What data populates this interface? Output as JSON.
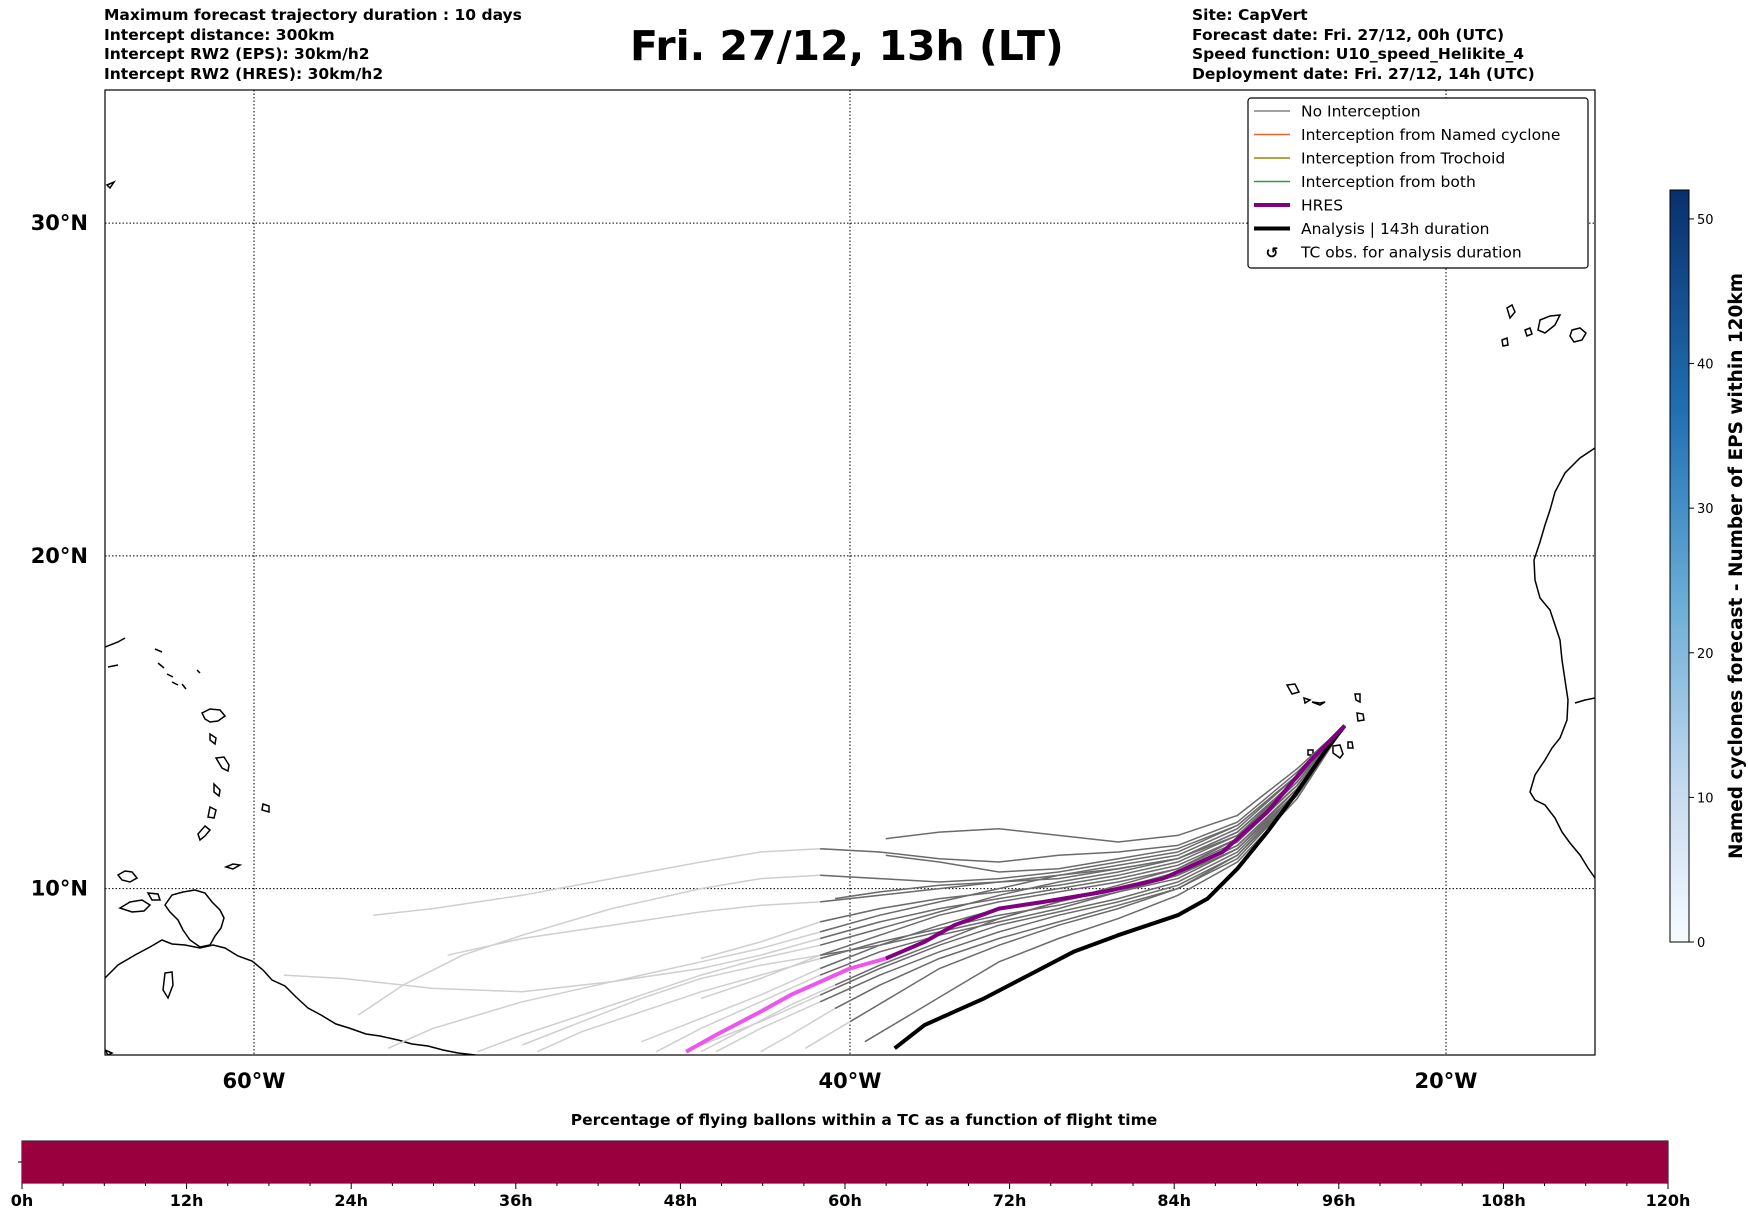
{
  "header_left": [
    "Maximum forecast trajectory duration : 10 days",
    "Intercept distance: 300km",
    "Intercept RW2 (EPS):  30km/h2",
    "Intercept RW2 (HRES): 30km/h2"
  ],
  "title": "Fri. 27/12, 13h (LT)",
  "header_right": [
    "Site: CapVert",
    "Forecast date: Fri. 27/12, 00h (UTC)",
    "Speed function: U10_speed_Helikite_4",
    "Deployment date: Fri. 27/12, 14h (UTC)"
  ],
  "colors": {
    "no_interception": "#808080",
    "named_cyclone": "#e8622c",
    "trochoid": "#8b8b00",
    "both": "#2e9c3a",
    "hres": "#800080",
    "hres_light": "#ee55ee",
    "analysis": "#000000",
    "bar_fill": "#99003d"
  },
  "chart_data": {
    "type": "line",
    "title": "Fri. 27/12, 13h (LT)",
    "xlabel": "",
    "ylabel": "",
    "xlim": [
      -65,
      -15
    ],
    "ylim": [
      5,
      34
    ],
    "x_ticks": [
      -60,
      -40,
      -20
    ],
    "x_tick_labels": [
      "60°W",
      "40°W",
      "20°W"
    ],
    "y_ticks": [
      10,
      20,
      30
    ],
    "y_tick_labels": [
      "10°N",
      "20°N",
      "30°N"
    ],
    "grid": true,
    "legend_position": "top-right",
    "legend": [
      {
        "label": "No Interception",
        "color": "#808080",
        "style": "thin"
      },
      {
        "label": "Interception from Named cyclone",
        "color": "#e8622c",
        "style": "thin"
      },
      {
        "label": "Interception from Trochoid",
        "color": "#8b8b00",
        "style": "thin"
      },
      {
        "label": "Interception from both",
        "color": "#2e9c3a",
        "style": "thin"
      },
      {
        "label": "HRES",
        "color": "#800080",
        "style": "thick"
      },
      {
        "label": "Analysis | 143h duration",
        "color": "#000000",
        "style": "thick"
      },
      {
        "label": "TC obs. for analysis duration",
        "color": "#000000",
        "style": "marker"
      }
    ],
    "origin": {
      "lon": -23.4,
      "lat": 14.9
    },
    "series": [
      {
        "name": "HRES",
        "points": [
          [
            -23.4,
            14.9
          ],
          [
            -24.6,
            13.8
          ],
          [
            -26,
            12.3
          ],
          [
            -27.5,
            11.1
          ],
          [
            -29.5,
            10.3
          ],
          [
            -31.5,
            9.9
          ],
          [
            -33.5,
            9.6
          ],
          [
            -35,
            9.4
          ],
          [
            -36.5,
            8.9
          ],
          [
            -37.5,
            8.4
          ],
          [
            -38.8,
            7.9
          ],
          [
            -40,
            7.6
          ],
          [
            -41,
            7.2
          ],
          [
            -42,
            6.8
          ],
          [
            -43,
            6.3
          ],
          [
            -44.5,
            5.6
          ],
          [
            -45.5,
            5.1
          ]
        ]
      },
      {
        "name": "Analysis | 143h duration",
        "points": [
          [
            -23.4,
            14.9
          ],
          [
            -24,
            14.2
          ],
          [
            -25,
            12.9
          ],
          [
            -26,
            11.7
          ],
          [
            -27,
            10.6
          ],
          [
            -28,
            9.7
          ],
          [
            -29,
            9.2
          ],
          [
            -31,
            8.6
          ],
          [
            -32.5,
            8.1
          ],
          [
            -34,
            7.4
          ],
          [
            -35.5,
            6.7
          ],
          [
            -36.5,
            6.3
          ],
          [
            -37.5,
            5.9
          ],
          [
            -38.5,
            5.2
          ]
        ]
      }
    ],
    "ensemble_members": [
      [
        [
          -23.4,
          14.9
        ],
        [
          -25,
          13.4
        ],
        [
          -27,
          11.9
        ],
        [
          -29,
          11.2
        ],
        [
          -31,
          10.9
        ],
        [
          -33,
          10.6
        ],
        [
          -35,
          10.5
        ],
        [
          -37,
          10.8
        ],
        [
          -38.8,
          11.0
        ]
      ],
      [
        [
          -23.4,
          14.9
        ],
        [
          -25,
          13.5
        ],
        [
          -27,
          12.0
        ],
        [
          -29,
          11.3
        ],
        [
          -31,
          11.1
        ],
        [
          -33,
          11.0
        ],
        [
          -35,
          10.8
        ],
        [
          -37,
          10.9
        ],
        [
          -39,
          11.1
        ],
        [
          -41,
          11.2
        ],
        [
          -43,
          11.1
        ],
        [
          -45,
          10.8
        ],
        [
          -48,
          10.3
        ],
        [
          -51,
          9.8
        ],
        [
          -54,
          9.4
        ],
        [
          -56,
          9.2
        ]
      ],
      [
        [
          -23.4,
          14.9
        ],
        [
          -25,
          13.3
        ],
        [
          -27,
          11.7
        ],
        [
          -29,
          10.9
        ],
        [
          -31,
          10.6
        ],
        [
          -33,
          10.3
        ],
        [
          -35,
          10.2
        ],
        [
          -37,
          10.1
        ],
        [
          -39,
          9.9
        ],
        [
          -40.5,
          9.7
        ]
      ],
      [
        [
          -23.4,
          14.9
        ],
        [
          -25,
          13.2
        ],
        [
          -27,
          11.6
        ],
        [
          -29,
          10.8
        ],
        [
          -31,
          10.4
        ],
        [
          -33,
          10.1
        ],
        [
          -35,
          9.9
        ],
        [
          -37,
          9.7
        ],
        [
          -39,
          9.4
        ],
        [
          -41,
          9.0
        ],
        [
          -43,
          8.4
        ],
        [
          -45,
          7.9
        ]
      ],
      [
        [
          -23.4,
          14.9
        ],
        [
          -25,
          13.1
        ],
        [
          -27,
          11.4
        ],
        [
          -29,
          10.6
        ],
        [
          -31,
          10.2
        ],
        [
          -33,
          9.9
        ],
        [
          -35,
          9.6
        ],
        [
          -37,
          9.2
        ],
        [
          -39,
          8.6
        ],
        [
          -41,
          8.0
        ],
        [
          -43,
          7.3
        ],
        [
          -45,
          6.7
        ]
      ],
      [
        [
          -23.4,
          14.9
        ],
        [
          -25,
          13.0
        ],
        [
          -27,
          11.3
        ],
        [
          -29,
          10.4
        ],
        [
          -31,
          10.0
        ],
        [
          -33,
          9.7
        ],
        [
          -35,
          9.4
        ],
        [
          -37,
          8.9
        ],
        [
          -39,
          8.3
        ],
        [
          -41,
          7.6
        ],
        [
          -43,
          6.8
        ],
        [
          -45,
          6.1
        ],
        [
          -47,
          5.4
        ]
      ],
      [
        [
          -23.4,
          14.9
        ],
        [
          -25,
          12.9
        ],
        [
          -27,
          11.1
        ],
        [
          -29,
          10.2
        ],
        [
          -31,
          9.7
        ],
        [
          -33,
          9.3
        ],
        [
          -35,
          8.9
        ],
        [
          -37,
          8.3
        ],
        [
          -39,
          7.6
        ],
        [
          -41,
          6.8
        ],
        [
          -43,
          6.0
        ],
        [
          -45,
          5.3
        ]
      ],
      [
        [
          -23.4,
          14.9
        ],
        [
          -25,
          12.8
        ],
        [
          -27,
          10.9
        ],
        [
          -29,
          10.0
        ],
        [
          -31,
          9.4
        ],
        [
          -33,
          8.9
        ],
        [
          -35,
          8.3
        ],
        [
          -37,
          7.6
        ],
        [
          -38.5,
          6.8
        ],
        [
          -40,
          6.0
        ],
        [
          -41.5,
          5.2
        ]
      ],
      [
        [
          -23.4,
          14.9
        ],
        [
          -25,
          12.7
        ],
        [
          -27,
          10.8
        ],
        [
          -29,
          9.8
        ],
        [
          -31,
          9.1
        ],
        [
          -33,
          8.5
        ],
        [
          -35,
          7.8
        ],
        [
          -36.5,
          7.0
        ],
        [
          -38,
          6.2
        ],
        [
          -39.5,
          5.4
        ]
      ],
      [
        [
          -23.4,
          14.9
        ],
        [
          -25,
          13.6
        ],
        [
          -27,
          12.2
        ],
        [
          -29,
          11.6
        ],
        [
          -31,
          11.4
        ],
        [
          -33,
          11.6
        ],
        [
          -35,
          11.8
        ],
        [
          -37,
          11.7
        ],
        [
          -38.8,
          11.5
        ]
      ],
      [
        [
          -23.4,
          14.9
        ],
        [
          -25,
          13.4
        ],
        [
          -27,
          11.8
        ],
        [
          -29,
          11.0
        ],
        [
          -31,
          10.7
        ],
        [
          -33,
          10.4
        ],
        [
          -35,
          10.0
        ],
        [
          -37,
          9.6
        ],
        [
          -39,
          9.2
        ],
        [
          -41,
          8.7
        ],
        [
          -43,
          8.2
        ],
        [
          -45,
          7.8
        ],
        [
          -48,
          7.2
        ],
        [
          -51,
          6.6
        ],
        [
          -54,
          5.8
        ],
        [
          -55.5,
          5.2
        ]
      ],
      [
        [
          -23.4,
          14.9
        ],
        [
          -25,
          13.2
        ],
        [
          -27,
          11.5
        ],
        [
          -29,
          10.7
        ],
        [
          -31,
          10.3
        ],
        [
          -33,
          10.0
        ],
        [
          -35,
          9.7
        ],
        [
          -37,
          9.4
        ],
        [
          -39,
          9.0
        ],
        [
          -41,
          8.5
        ],
        [
          -43,
          8.0
        ],
        [
          -45,
          7.6
        ],
        [
          -48,
          7.2
        ],
        [
          -51,
          6.9
        ],
        [
          -54,
          7.0
        ],
        [
          -57,
          7.3
        ],
        [
          -59,
          7.4
        ]
      ],
      [
        [
          -23.4,
          14.9
        ],
        [
          -25,
          13.3
        ],
        [
          -27,
          11.6
        ],
        [
          -29,
          10.9
        ],
        [
          -31,
          10.5
        ],
        [
          -33,
          10.2
        ],
        [
          -35,
          9.8
        ],
        [
          -37,
          9.3
        ],
        [
          -39,
          8.8
        ],
        [
          -41,
          8.3
        ],
        [
          -43,
          7.9
        ],
        [
          -45,
          7.4
        ],
        [
          -47,
          6.8
        ],
        [
          -49,
          6.2
        ],
        [
          -51,
          5.6
        ],
        [
          -52.5,
          5.1
        ]
      ],
      [
        [
          -23.4,
          14.9
        ],
        [
          -25,
          13.0
        ],
        [
          -27,
          11.2
        ],
        [
          -29,
          10.3
        ],
        [
          -31,
          9.9
        ],
        [
          -33,
          9.5
        ],
        [
          -35,
          9.2
        ],
        [
          -37,
          8.8
        ],
        [
          -39,
          8.4
        ],
        [
          -41,
          7.9
        ],
        [
          -43,
          7.4
        ],
        [
          -45,
          6.9
        ],
        [
          -47,
          6.3
        ],
        [
          -49,
          5.7
        ],
        [
          -50.5,
          5.1
        ]
      ],
      [
        [
          -23.4,
          14.9
        ],
        [
          -25,
          12.9
        ],
        [
          -27,
          11.0
        ],
        [
          -29,
          10.1
        ],
        [
          -31,
          9.6
        ],
        [
          -33,
          9.2
        ],
        [
          -35,
          8.7
        ],
        [
          -37,
          8.1
        ],
        [
          -39,
          7.4
        ],
        [
          -41,
          6.6
        ],
        [
          -43,
          5.8
        ],
        [
          -44.5,
          5.1
        ]
      ],
      [
        [
          -23.4,
          14.9
        ],
        [
          -25,
          12.8
        ],
        [
          -27,
          11.0
        ],
        [
          -29,
          10.0
        ],
        [
          -31,
          9.5
        ],
        [
          -33,
          9.0
        ],
        [
          -35,
          8.5
        ],
        [
          -37,
          7.9
        ],
        [
          -39,
          7.1
        ],
        [
          -40.5,
          6.4
        ],
        [
          -42,
          5.6
        ],
        [
          -43,
          5.1
        ]
      ],
      [
        [
          -23.4,
          14.9
        ],
        [
          -25,
          13.1
        ],
        [
          -27,
          11.5
        ],
        [
          -29,
          10.6
        ],
        [
          -31,
          10.1
        ],
        [
          -33,
          9.6
        ],
        [
          -35,
          9.1
        ],
        [
          -37,
          8.7
        ],
        [
          -39,
          8.3
        ],
        [
          -41,
          8.0
        ],
        [
          -43,
          7.7
        ],
        [
          -45,
          7.3
        ],
        [
          -47,
          6.7
        ],
        [
          -49,
          6.0
        ],
        [
          -51,
          5.3
        ]
      ],
      [
        [
          -23.4,
          14.9
        ],
        [
          -25,
          13.4
        ],
        [
          -27,
          11.9
        ],
        [
          -29,
          11.1
        ],
        [
          -31,
          10.8
        ],
        [
          -33,
          10.5
        ],
        [
          -35,
          10.3
        ],
        [
          -37,
          10.2
        ],
        [
          -39,
          10.3
        ],
        [
          -41,
          10.4
        ],
        [
          -43,
          10.3
        ],
        [
          -45,
          10.0
        ],
        [
          -48,
          9.4
        ],
        [
          -51,
          8.6
        ],
        [
          -53,
          8.0
        ],
        [
          -55,
          7.1
        ],
        [
          -56.5,
          6.2
        ]
      ],
      [
        [
          -23.4,
          14.9
        ],
        [
          -25,
          13.3
        ],
        [
          -27,
          11.7
        ],
        [
          -29,
          10.9
        ],
        [
          -31,
          10.6
        ],
        [
          -33,
          10.4
        ],
        [
          -35,
          10.2
        ],
        [
          -37,
          10.0
        ],
        [
          -39,
          9.8
        ],
        [
          -41,
          9.6
        ],
        [
          -43,
          9.5
        ],
        [
          -45,
          9.3
        ],
        [
          -48,
          8.9
        ],
        [
          -51,
          8.5
        ],
        [
          -53.5,
          8.0
        ]
      ],
      [
        [
          -23.4,
          14.9
        ],
        [
          -25,
          13.0
        ],
        [
          -27,
          11.3
        ],
        [
          -29,
          10.5
        ],
        [
          -31,
          10.0
        ],
        [
          -33,
          9.6
        ],
        [
          -35,
          9.1
        ],
        [
          -37,
          8.4
        ],
        [
          -39,
          7.7
        ],
        [
          -40.5,
          7.1
        ],
        [
          -42,
          6.5
        ],
        [
          -43.5,
          5.8
        ],
        [
          -45,
          5.1
        ]
      ],
      [
        [
          -23.4,
          14.9
        ],
        [
          -25,
          12.9
        ],
        [
          -27,
          11.2
        ],
        [
          -29,
          10.4
        ],
        [
          -31,
          9.9
        ],
        [
          -33,
          9.4
        ],
        [
          -35,
          9.0
        ],
        [
          -37,
          8.6
        ],
        [
          -39,
          8.1
        ],
        [
          -41,
          7.4
        ],
        [
          -43,
          6.6
        ],
        [
          -45,
          5.8
        ],
        [
          -46.5,
          5.1
        ]
      ]
    ],
    "bottom_bar": {
      "title": "Percentage of flying ballons within a TC as a function of flight time",
      "tick_labels": [
        "0h",
        "12h",
        "24h",
        "36h",
        "48h",
        "60h",
        "72h",
        "84h",
        "96h",
        "108h",
        "120h"
      ],
      "range_hours": [
        0,
        120
      ],
      "filled_range": [
        0,
        120
      ]
    },
    "colorbar": {
      "label": "Named cyclones forecast - Number of EPS within 120km",
      "range": [
        0,
        52
      ],
      "ticks": [
        "0",
        "10",
        "20",
        "30",
        "40",
        "50"
      ],
      "tick_values": [
        0,
        10,
        20,
        30,
        40,
        50
      ]
    }
  }
}
